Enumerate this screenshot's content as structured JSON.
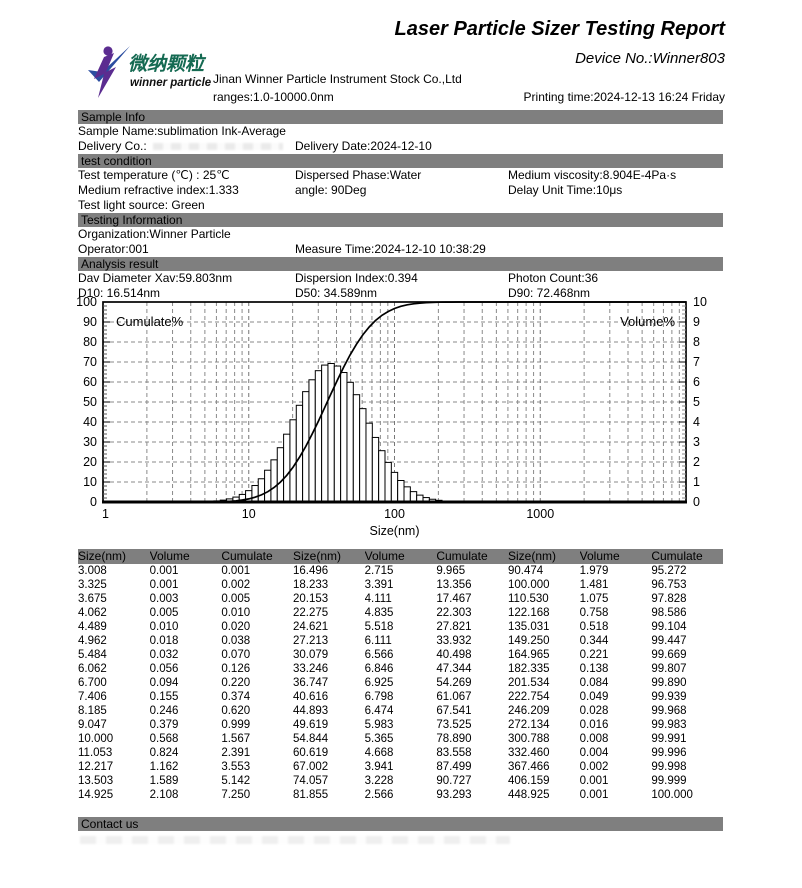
{
  "header": {
    "title": "Laser Particle Sizer Testing Report",
    "device_no": "Device No.:Winner803",
    "company": "Jinan Winner Particle Instrument Stock Co.,Ltd",
    "ranges": "ranges:1.0-10000.0nm",
    "printing_time": "Printing time:2024-12-13 16:24 Friday",
    "logo_cn": "微纳颗粒",
    "logo_en": "winner particle"
  },
  "colors": {
    "section_bar": "#7f7f7f",
    "logo_purple": "#5b2c90",
    "logo_blue": "#2b4da0",
    "logo_green": "#156a52",
    "grid_gray": "#8a8a8a"
  },
  "sample_info": {
    "title": "Sample Info",
    "sample_name": "Sample Name:sublimation Ink-Average",
    "delivery_co": "Delivery Co.:",
    "delivery_date": "Delivery Date:2024-12-10"
  },
  "test_condition": {
    "title": "test condition",
    "test_temperature": "Test temperature (℃) : 25℃",
    "dispersed_phase": "Dispersed Phase:Water",
    "medium_viscosity": "Medium viscosity:8.904E-4Pa·s",
    "medium_refractive_index": "Medium refractive index:1.333",
    "angle": "angle: 90Deg",
    "delay_unit_time": "Delay Unit Time:10μs",
    "test_light_source": "Test light source: Green"
  },
  "testing_information": {
    "title": "Testing Information",
    "organization": "Organization:Winner Particle",
    "operator": "Operator:001",
    "measure_time": "Measure Time:2024-12-10 10:38:29"
  },
  "analysis_result": {
    "title": "Analysis result",
    "dav_diameter": "Dav Diameter Xav:59.803nm",
    "dispersion_index": "Dispersion Index:0.394",
    "photon_count": "Photon Count:36",
    "d10": "D10: 16.514nm",
    "d50": "D50: 34.589nm",
    "d90": "D90: 72.468nm"
  },
  "table": {
    "headers_group": [
      "Size(nm)",
      "Volume",
      "Cumulate"
    ],
    "group_repeat": 3
  },
  "contact": {
    "title": "Contact us"
  },
  "chart_data": {
    "type": "bar",
    "subtype": "log-histogram with cumulative line",
    "title": "",
    "xlabel": "Size(nm)",
    "x_axis": {
      "scale": "log",
      "min": 1,
      "max": 10000,
      "tick_labels": [
        "1",
        "10",
        "100",
        "1000"
      ]
    },
    "left_axis": {
      "label": "Cumulate%",
      "min": 0,
      "max": 100,
      "step": 10
    },
    "right_axis": {
      "label": "Volume%",
      "min": 0,
      "max": 10,
      "step": 1
    },
    "series": [
      {
        "name": "Volume",
        "type": "bar",
        "axis": "right"
      },
      {
        "name": "Cumulate",
        "type": "line",
        "axis": "left"
      }
    ],
    "points_format": [
      "size_nm",
      "volume_pct",
      "cumulate_pct"
    ],
    "points": [
      [
        3.008,
        0.001,
        0.001
      ],
      [
        3.325,
        0.001,
        0.002
      ],
      [
        3.675,
        0.003,
        0.005
      ],
      [
        4.062,
        0.005,
        0.01
      ],
      [
        4.489,
        0.01,
        0.02
      ],
      [
        4.962,
        0.018,
        0.038
      ],
      [
        5.484,
        0.032,
        0.07
      ],
      [
        6.062,
        0.056,
        0.126
      ],
      [
        6.7,
        0.094,
        0.22
      ],
      [
        7.406,
        0.155,
        0.374
      ],
      [
        8.185,
        0.246,
        0.62
      ],
      [
        9.047,
        0.379,
        0.999
      ],
      [
        10.0,
        0.568,
        1.567
      ],
      [
        11.053,
        0.824,
        2.391
      ],
      [
        12.217,
        1.162,
        3.553
      ],
      [
        13.503,
        1.589,
        5.142
      ],
      [
        14.925,
        2.108,
        7.25
      ],
      [
        16.496,
        2.715,
        9.965
      ],
      [
        18.233,
        3.391,
        13.356
      ],
      [
        20.153,
        4.111,
        17.467
      ],
      [
        22.275,
        4.835,
        22.303
      ],
      [
        24.621,
        5.518,
        27.821
      ],
      [
        27.213,
        6.111,
        33.932
      ],
      [
        30.079,
        6.566,
        40.498
      ],
      [
        33.246,
        6.846,
        47.344
      ],
      [
        36.747,
        6.925,
        54.269
      ],
      [
        40.616,
        6.798,
        61.067
      ],
      [
        44.893,
        6.474,
        67.541
      ],
      [
        49.619,
        5.983,
        73.525
      ],
      [
        54.844,
        5.365,
        78.89
      ],
      [
        60.619,
        4.668,
        83.558
      ],
      [
        67.002,
        3.941,
        87.499
      ],
      [
        74.057,
        3.228,
        90.727
      ],
      [
        81.855,
        2.566,
        93.293
      ],
      [
        90.474,
        1.979,
        95.272
      ],
      [
        100.0,
        1.481,
        96.753
      ],
      [
        110.53,
        1.075,
        97.828
      ],
      [
        122.168,
        0.758,
        98.586
      ],
      [
        135.031,
        0.518,
        99.104
      ],
      [
        149.25,
        0.344,
        99.447
      ],
      [
        164.965,
        0.221,
        99.669
      ],
      [
        182.335,
        0.138,
        99.807
      ],
      [
        201.534,
        0.084,
        99.89
      ],
      [
        222.754,
        0.049,
        99.939
      ],
      [
        246.209,
        0.028,
        99.968
      ],
      [
        272.134,
        0.016,
        99.983
      ],
      [
        300.788,
        0.008,
        99.991
      ],
      [
        332.46,
        0.004,
        99.996
      ],
      [
        367.466,
        0.002,
        99.998
      ],
      [
        406.159,
        0.001,
        99.999
      ],
      [
        448.925,
        0.001,
        100.0
      ]
    ]
  }
}
